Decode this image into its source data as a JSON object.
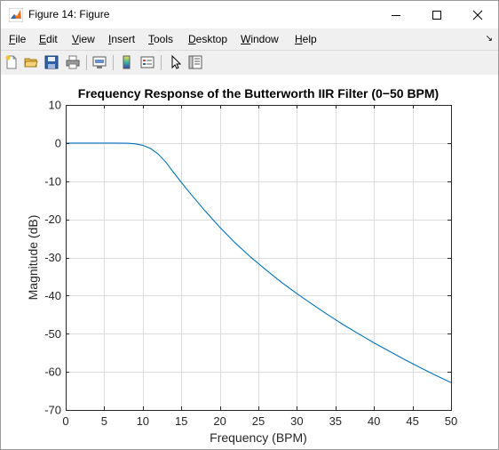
{
  "window": {
    "title": "Figure 14: Figure"
  },
  "menubar": {
    "items": [
      {
        "first": "F",
        "rest": "ile"
      },
      {
        "first": "E",
        "rest": "dit"
      },
      {
        "first": "V",
        "rest": "iew"
      },
      {
        "first": "I",
        "rest": "nsert"
      },
      {
        "first": "T",
        "rest": "ools"
      },
      {
        "first": "D",
        "rest": "esktop"
      },
      {
        "first": "W",
        "rest": "indow"
      },
      {
        "first": "H",
        "rest": "elp"
      }
    ],
    "dock_glyph": "↘"
  },
  "toolbar": {
    "icons": [
      "new-figure-icon",
      "open-file-icon",
      "save-icon",
      "print-icon",
      "link-plot-icon",
      "colorbar-icon",
      "legend-icon",
      "edit-plot-icon",
      "property-inspector-icon"
    ]
  },
  "colors": {
    "line": "#0072BD",
    "grid": "#dcdcdc",
    "axes": "#262626"
  },
  "chart_data": {
    "type": "line",
    "title": "Frequency Response of the Butterworth IIR Filter (0−50 BPM)",
    "xlabel": "Frequency (BPM)",
    "ylabel": "Magnitude (dB)",
    "xlim": [
      0,
      50
    ],
    "ylim": [
      -70,
      10
    ],
    "xticks": [
      0,
      5,
      10,
      15,
      20,
      25,
      30,
      35,
      40,
      45,
      50
    ],
    "yticks": [
      10,
      0,
      -10,
      -20,
      -30,
      -40,
      -50,
      -60,
      -70
    ],
    "grid": true,
    "legend": "none",
    "series": [
      {
        "x": [
          0,
          2,
          4,
          6,
          8,
          9,
          10,
          11,
          12,
          13,
          14,
          15,
          16,
          18,
          20,
          22,
          24,
          26,
          28,
          30,
          32,
          34,
          36,
          38,
          40,
          42,
          44,
          46,
          48,
          50
        ],
        "values": [
          0,
          0,
          0,
          0,
          -0.05,
          -0.2,
          -0.6,
          -1.4,
          -2.9,
          -5.0,
          -7.7,
          -10.3,
          -12.8,
          -17.6,
          -22.1,
          -26.2,
          -29.9,
          -33.3,
          -36.5,
          -39.5,
          -42.3,
          -45.0,
          -47.6,
          -50.0,
          -52.4,
          -54.6,
          -56.8,
          -58.9,
          -60.9,
          -62.8
        ]
      }
    ]
  }
}
